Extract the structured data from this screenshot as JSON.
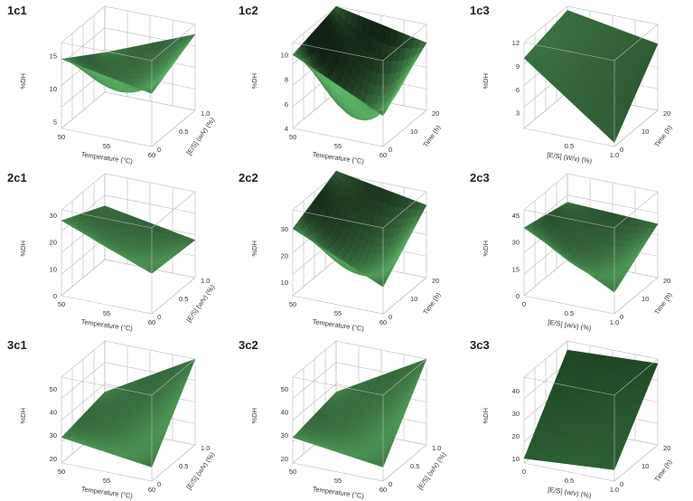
{
  "chart_data": [
    {
      "type": "surface",
      "id": "1c1",
      "panel_label": "1c1",
      "zlabel": "%DH",
      "xlabel": "Temperature (°C)",
      "ylabel": "[E/S] (w/v) (%)",
      "x_ticks": [
        "50",
        "55",
        "60"
      ],
      "y_ticks": [
        "0",
        "0.5",
        "1.0"
      ],
      "z_ticks": [
        "5",
        "10",
        "15"
      ],
      "zlim": [
        4,
        17
      ],
      "corners": {
        "x0y0": 14.5,
        "x1y0": 12.0,
        "x0y1": 10.0,
        "x1y1": 15.5,
        "center": 8.5
      },
      "color": "#5fb96a"
    },
    {
      "type": "surface",
      "id": "1c2",
      "panel_label": "1c2",
      "zlabel": "%DH",
      "xlabel": "Temperature (°C)",
      "ylabel": "Time (h)",
      "x_ticks": [
        "50",
        "55",
        "60"
      ],
      "y_ticks": [
        "0",
        "10",
        "20"
      ],
      "z_ticks": [
        "4",
        "6",
        "8",
        "10"
      ],
      "zlim": [
        4,
        11
      ],
      "corners": {
        "x0y0": 10.0,
        "x1y0": 6.5,
        "x0y1": 11.0,
        "x1y1": 9.5,
        "center": 4.5
      },
      "color": "#5fb96a"
    },
    {
      "type": "surface",
      "id": "1c3",
      "panel_label": "1c3",
      "zlabel": "%DH",
      "xlabel": "[E/S] (W/v) (%)",
      "ylabel": "Time (h)",
      "x_ticks": [
        "0.5",
        "1.0"
      ],
      "y_ticks": [
        "0",
        "10",
        "20"
      ],
      "z_ticks": [
        "3",
        "6",
        "9",
        "12"
      ],
      "zlim": [
        1,
        12
      ],
      "corners": {
        "x0y0": 10.0,
        "x1y0": 1.5,
        "x0y1": 11.5,
        "x1y1": 9.5,
        "center": 8.5
      },
      "color": "#5fb96a"
    },
    {
      "type": "surface",
      "id": "2c1",
      "panel_label": "2c1",
      "zlabel": "%DH",
      "xlabel": "Temperature (°C)",
      "ylabel": "[E/S] (w/v) (%)",
      "x_ticks": [
        "50",
        "55",
        "60"
      ],
      "y_ticks": [
        "0",
        "0.5",
        "1.0"
      ],
      "z_ticks": [
        "0",
        "10",
        "20",
        "30"
      ],
      "zlim": [
        0,
        32
      ],
      "corners": {
        "x0y0": 28.0,
        "x1y0": 15.0,
        "x0y1": 20.0,
        "x1y1": 14.0,
        "center": 14.0
      },
      "color": "#5fb96a"
    },
    {
      "type": "surface",
      "id": "2c2",
      "panel_label": "2c2",
      "zlabel": "%DH",
      "xlabel": "Temperature (°C)",
      "ylabel": "Time (h)",
      "x_ticks": [
        "50",
        "55",
        "60"
      ],
      "y_ticks": [
        "0",
        "10",
        "20"
      ],
      "z_ticks": [
        "10",
        "20",
        "30"
      ],
      "zlim": [
        5,
        37
      ],
      "corners": {
        "x0y0": 30.0,
        "x1y0": 15.0,
        "x0y1": 38.0,
        "x1y1": 32.0,
        "center": 14.0
      },
      "color": "#5fb96a"
    },
    {
      "type": "surface",
      "id": "2c3",
      "panel_label": "2c3",
      "zlabel": "%DH",
      "xlabel": "[E/S] (w/v) (%)",
      "ylabel": "Time (h)",
      "x_ticks": [
        "0",
        "0.5",
        "1.0"
      ],
      "y_ticks": [
        "0",
        "10",
        "20"
      ],
      "z_ticks": [
        "0",
        "15",
        "30",
        "45"
      ],
      "zlim": [
        0,
        48
      ],
      "corners": {
        "x0y0": 38.0,
        "x1y0": 12.0,
        "x0y1": 32.0,
        "x1y1": 30.0,
        "center": 14.0
      },
      "color": "#5fb96a"
    },
    {
      "type": "surface",
      "id": "3c1",
      "panel_label": "3c1",
      "zlabel": "%DH",
      "xlabel": "Temperature (°C)",
      "ylabel": "[E/S] (w/v) (%)",
      "x_ticks": [
        "50",
        "55",
        "60"
      ],
      "y_ticks": [
        "0",
        "0.5",
        "1.0"
      ],
      "z_ticks": [
        "20",
        "30",
        "40",
        "50"
      ],
      "zlim": [
        18,
        55
      ],
      "corners": {
        "x0y0": 29.0,
        "x1y0": 24.0,
        "x0y1": 33.0,
        "x1y1": 55.0,
        "center": 27.0
      },
      "color": "#5fb96a"
    },
    {
      "type": "surface",
      "id": "3c2",
      "panel_label": "3c2",
      "zlabel": "%DH",
      "xlabel": "Temperature (°C)",
      "ylabel": "[E/S] (w/v) (%)",
      "x_ticks": [
        "50",
        "55",
        "60"
      ],
      "y_ticks": [
        "0",
        "0.5",
        "1.0"
      ],
      "z_ticks": [
        "20",
        "30",
        "40",
        "50"
      ],
      "zlim": [
        18,
        55
      ],
      "corners": {
        "x0y0": 29.0,
        "x1y0": 24.0,
        "x0y1": 33.0,
        "x1y1": 55.0,
        "center": 27.0
      },
      "color": "#5fb96a"
    },
    {
      "type": "surface",
      "id": "3c3",
      "panel_label": "3c3",
      "zlabel": "%DH",
      "xlabel": "[E/S] (w/v) (%)",
      "ylabel": "Time (h)",
      "x_ticks": [
        "0",
        "0.5",
        "1.0"
      ],
      "y_ticks": [
        "0",
        "10",
        "20"
      ],
      "z_ticks": [
        "10",
        "20",
        "30",
        "40"
      ],
      "zlim": [
        8,
        46
      ],
      "corners": {
        "x0y0": 10.0,
        "x1y0": 13.0,
        "x0y1": 42.0,
        "x1y1": 44.0,
        "center": 26.0
      },
      "color": "#3e8a4a"
    }
  ]
}
